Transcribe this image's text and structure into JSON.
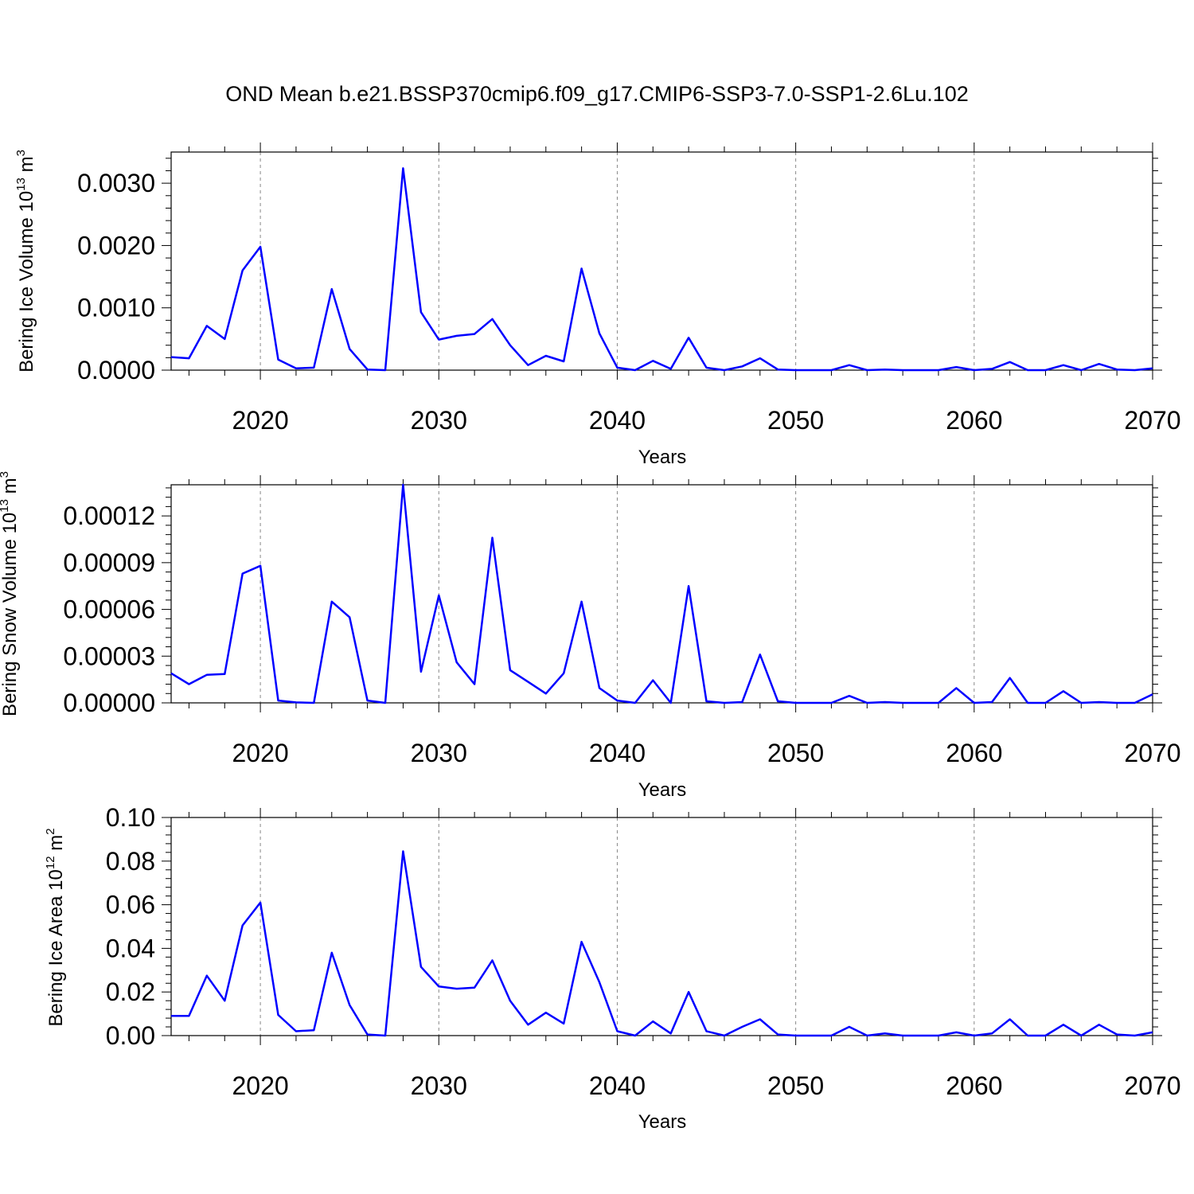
{
  "title": "OND Mean b.e21.BSSP370cmip6.f09_g17.CMIP6-SSP3-7.0-SSP1-2.6Lu.102",
  "chart_data": [
    {
      "type": "line",
      "title": "OND Mean b.e21.BSSP370cmip6.f09_g17.CMIP6-SSP3-7.0-SSP1-2.6Lu.102",
      "xlabel": "Years",
      "ylabel": "Bering Ice Volume 10",
      "ylabel_exp": "13",
      "ylabel_unit": " m",
      "ylabel_unit_exp": "3",
      "xlim": [
        2015,
        2070
      ],
      "ylim": [
        0,
        0.0035
      ],
      "xticks": [
        2020,
        2030,
        2040,
        2050,
        2060,
        2070
      ],
      "xtick_labels": [
        "2020",
        "2030",
        "2040",
        "2050",
        "2060",
        "2070"
      ],
      "yticks": [
        0,
        0.001,
        0.002,
        0.003
      ],
      "ytick_labels": [
        "0.0000",
        "0.0010",
        "0.0020",
        "0.0030"
      ],
      "color": "#0000ff",
      "x": [
        2015,
        2016,
        2017,
        2018,
        2019,
        2020,
        2021,
        2022,
        2023,
        2024,
        2025,
        2026,
        2027,
        2028,
        2029,
        2030,
        2031,
        2032,
        2033,
        2034,
        2035,
        2036,
        2037,
        2038,
        2039,
        2040,
        2041,
        2042,
        2043,
        2044,
        2045,
        2046,
        2047,
        2048,
        2049,
        2050,
        2051,
        2052,
        2053,
        2054,
        2055,
        2056,
        2057,
        2058,
        2059,
        2060,
        2061,
        2062,
        2063,
        2064,
        2065,
        2066,
        2067,
        2068,
        2069,
        2070
      ],
      "y": [
        0.00021,
        0.00019,
        0.00071,
        0.0005,
        0.0016,
        0.00198,
        0.00017,
        3e-05,
        4e-05,
        0.0013,
        0.00034,
        1e-05,
        0.0,
        0.00324,
        0.00093,
        0.00049,
        0.00055,
        0.00058,
        0.00082,
        0.0004,
        8e-05,
        0.00023,
        0.00014,
        0.00163,
        0.00059,
        4e-05,
        0.0,
        0.00015,
        2e-05,
        0.00052,
        4e-05,
        0.0,
        6e-05,
        0.00019,
        1e-05,
        0.0,
        0.0,
        0.0,
        8e-05,
        0.0,
        1e-05,
        0.0,
        0.0,
        0.0,
        5e-05,
        0.0,
        2e-05,
        0.00013,
        0.0,
        0.0,
        8e-05,
        0.0,
        0.0001,
        1e-05,
        0.0,
        3e-05
      ]
    },
    {
      "type": "line",
      "xlabel": "Years",
      "ylabel": "Bering Snow Volume 10",
      "ylabel_exp": "13",
      "ylabel_unit": " m",
      "ylabel_unit_exp": "3",
      "xlim": [
        2015,
        2070
      ],
      "ylim": [
        0,
        0.00014
      ],
      "xticks": [
        2020,
        2030,
        2040,
        2050,
        2060,
        2070
      ],
      "xtick_labels": [
        "2020",
        "2030",
        "2040",
        "2050",
        "2060",
        "2070"
      ],
      "yticks": [
        0,
        3e-05,
        6e-05,
        9e-05,
        0.00012
      ],
      "ytick_labels": [
        "0.00000",
        "0.00003",
        "0.00006",
        "0.00009",
        "0.00012"
      ],
      "color": "#0000ff",
      "x": [
        2015,
        2016,
        2017,
        2018,
        2019,
        2020,
        2021,
        2022,
        2023,
        2024,
        2025,
        2026,
        2027,
        2028,
        2029,
        2030,
        2031,
        2032,
        2033,
        2034,
        2035,
        2036,
        2037,
        2038,
        2039,
        2040,
        2041,
        2042,
        2043,
        2044,
        2045,
        2046,
        2047,
        2048,
        2049,
        2050,
        2051,
        2052,
        2053,
        2054,
        2055,
        2056,
        2057,
        2058,
        2059,
        2060,
        2061,
        2062,
        2063,
        2064,
        2065,
        2066,
        2067,
        2068,
        2069,
        2070
      ],
      "y": [
        1.9e-05,
        1.2e-05,
        1.8e-05,
        1.85e-05,
        8.3e-05,
        8.8e-05,
        1.5e-06,
        3e-07,
        0.0,
        6.5e-05,
        5.5e-05,
        1.5e-06,
        0.0,
        0.00014,
        2e-05,
        6.9e-05,
        2.6e-05,
        1.2e-05,
        0.000106,
        2.1e-05,
        1.35e-05,
        6e-06,
        1.9e-05,
        6.5e-05,
        9.5e-06,
        1.5e-06,
        0.0,
        1.45e-05,
        0.0,
        7.5e-05,
        1e-06,
        0.0,
        5e-07,
        3.1e-05,
        1e-06,
        0.0,
        0.0,
        0.0,
        4.5e-06,
        0.0,
        5e-07,
        0.0,
        0.0,
        0.0,
        9.5e-06,
        0.0,
        5e-07,
        1.6e-05,
        0.0,
        0.0,
        7.5e-06,
        0.0,
        5e-07,
        0.0,
        0.0,
        5.5e-06
      ]
    },
    {
      "type": "line",
      "xlabel": "Years",
      "ylabel": "Bering Ice Area 10",
      "ylabel_exp": "12",
      "ylabel_unit": " m",
      "ylabel_unit_exp": "2",
      "xlim": [
        2015,
        2070
      ],
      "ylim": [
        0,
        0.1
      ],
      "xticks": [
        2020,
        2030,
        2040,
        2050,
        2060,
        2070
      ],
      "xtick_labels": [
        "2020",
        "2030",
        "2040",
        "2050",
        "2060",
        "2070"
      ],
      "yticks": [
        0,
        0.02,
        0.04,
        0.06,
        0.08,
        0.1
      ],
      "ytick_labels": [
        "0.00",
        "0.02",
        "0.04",
        "0.06",
        "0.08",
        "0.10"
      ],
      "color": "#0000ff",
      "x": [
        2015,
        2016,
        2017,
        2018,
        2019,
        2020,
        2021,
        2022,
        2023,
        2024,
        2025,
        2026,
        2027,
        2028,
        2029,
        2030,
        2031,
        2032,
        2033,
        2034,
        2035,
        2036,
        2037,
        2038,
        2039,
        2040,
        2041,
        2042,
        2043,
        2044,
        2045,
        2046,
        2047,
        2048,
        2049,
        2050,
        2051,
        2052,
        2053,
        2054,
        2055,
        2056,
        2057,
        2058,
        2059,
        2060,
        2061,
        2062,
        2063,
        2064,
        2065,
        2066,
        2067,
        2068,
        2069,
        2070
      ],
      "y": [
        0.009,
        0.009,
        0.0275,
        0.016,
        0.0505,
        0.061,
        0.0095,
        0.002,
        0.0025,
        0.038,
        0.014,
        0.0005,
        0.0,
        0.0845,
        0.0315,
        0.0225,
        0.0215,
        0.022,
        0.0345,
        0.016,
        0.005,
        0.0105,
        0.0055,
        0.043,
        0.0245,
        0.002,
        0.0,
        0.0065,
        0.001,
        0.02,
        0.002,
        0.0,
        0.004,
        0.0075,
        0.0005,
        0.0,
        0.0,
        0.0,
        0.004,
        0.0,
        0.001,
        0.0,
        0.0,
        0.0,
        0.0015,
        0.0,
        0.001,
        0.0075,
        0.0,
        0.0,
        0.005,
        0.0,
        0.005,
        0.0005,
        0.0,
        0.0015
      ]
    }
  ]
}
